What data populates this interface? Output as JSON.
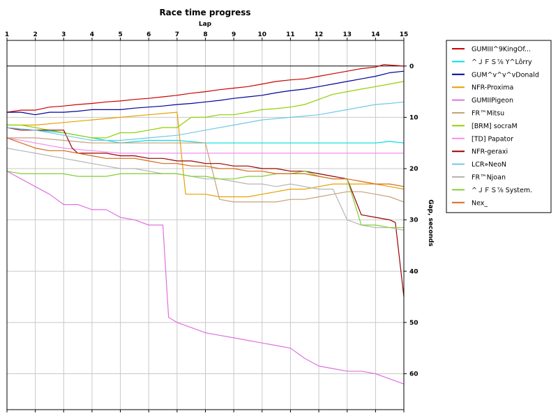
{
  "chart_data": {
    "type": "line",
    "title": "Race time progress",
    "xlabel": "Lap",
    "ylabel": "Gap, seconds",
    "x_ticks": [
      1,
      2,
      3,
      4,
      5,
      6,
      7,
      8,
      9,
      10,
      11,
      12,
      13,
      14,
      15
    ],
    "y_ticks": [
      0,
      10,
      20,
      30,
      40,
      50,
      60
    ],
    "xlim": [
      1,
      15
    ],
    "ylim": [
      -5,
      67
    ],
    "y_inverted": true,
    "grid": true,
    "legend_position": "right",
    "series": [
      {
        "name": "GUMIII^9KingOf...",
        "color": "#cc0000",
        "x": [
          1,
          1.5,
          2,
          2.5,
          3,
          3.5,
          4,
          4.5,
          5,
          5.5,
          6,
          6.5,
          7,
          7.5,
          8,
          8.5,
          9,
          9.5,
          10,
          10.5,
          11,
          11.5,
          12,
          12.5,
          13,
          13.5,
          14,
          14.3,
          14.5,
          15
        ],
        "y": [
          9,
          8.6,
          8.6,
          8,
          7.8,
          7.5,
          7.3,
          7,
          6.8,
          6.5,
          6.3,
          6,
          5.7,
          5.3,
          5,
          4.6,
          4.3,
          4,
          3.5,
          3,
          2.7,
          2.5,
          2,
          1.5,
          1,
          0.5,
          0.2,
          -0.3,
          -0.2,
          0
        ]
      },
      {
        "name": "^ＪＦＳ⅞ Y^Lôrry",
        "color": "#00e0e0",
        "x": [
          1,
          2,
          3,
          4,
          5,
          6,
          7,
          8,
          9,
          10,
          11,
          12,
          13,
          14,
          14.5,
          15
        ],
        "y": [
          12,
          12.5,
          13,
          14,
          15,
          14.5,
          14.5,
          15,
          15,
          15,
          15,
          15,
          15,
          15,
          14.7,
          15
        ]
      },
      {
        "name": "GUM^v^v^vDonald",
        "color": "#000099",
        "x": [
          1,
          1.5,
          2,
          2.5,
          3,
          3.5,
          4,
          4.5,
          5,
          5.5,
          6,
          6.5,
          7,
          7.5,
          8,
          8.5,
          9,
          9.5,
          10,
          10.5,
          11,
          11.5,
          12,
          12.5,
          13,
          13.5,
          14,
          14.5,
          15
        ],
        "y": [
          9,
          9,
          9.5,
          9,
          9,
          8.8,
          8.5,
          8.5,
          8.5,
          8.2,
          8,
          7.8,
          7.5,
          7.3,
          7,
          6.7,
          6.3,
          6,
          5.7,
          5.2,
          4.8,
          4.5,
          4,
          3.5,
          3,
          2.5,
          2,
          1.3,
          1
        ]
      },
      {
        "name": "NFR-Proxima",
        "color": "#e6a000",
        "x": [
          1,
          2,
          3,
          4,
          5,
          6,
          7,
          7.3,
          8,
          8.5,
          9,
          9.5,
          10,
          10.5,
          11,
          11.5,
          12,
          12.5,
          13,
          13.5,
          14,
          14.5,
          15
        ],
        "y": [
          11.5,
          11.5,
          11,
          10.5,
          10,
          9.5,
          9,
          25,
          25,
          25.5,
          25.5,
          25.5,
          25,
          24.5,
          24,
          24,
          23.5,
          23,
          23,
          23,
          23,
          23.5,
          24
        ]
      },
      {
        "name": "GUMIIPigeon",
        "color": "#e070e0",
        "x": [
          1,
          1.5,
          2,
          2.5,
          3,
          3.5,
          4,
          4.5,
          5,
          5.5,
          6,
          6.5,
          6.7,
          7,
          7.5,
          8,
          8.5,
          9,
          9.5,
          10,
          10.5,
          11,
          11.5,
          12,
          12.5,
          13,
          13.5,
          14,
          14.5,
          15
        ],
        "y": [
          20.5,
          22,
          23.5,
          25,
          27,
          27,
          28,
          28,
          29.5,
          30,
          31,
          31,
          49,
          50,
          51,
          52,
          52.5,
          53,
          53.5,
          54,
          54.5,
          55,
          57,
          58.5,
          59,
          59.5,
          59.5,
          60,
          61,
          62
        ]
      },
      {
        "name": "FR™Mitsu",
        "color": "#c8a078",
        "x": [
          1,
          2,
          3,
          4,
          5,
          6,
          7,
          8,
          8.5,
          9,
          9.5,
          10,
          10.5,
          11,
          11.5,
          12,
          12.5,
          13,
          13.5,
          14,
          14.5,
          15
        ],
        "y": [
          14,
          14,
          14.5,
          15,
          15,
          15,
          15,
          15,
          26,
          26.5,
          26.5,
          26.5,
          26.5,
          26,
          26,
          25.5,
          25,
          24.5,
          24.5,
          25,
          25.5,
          26.5
        ]
      },
      {
        "name": "[BRM] socraM",
        "color": "#90d000",
        "x": [
          1,
          1.5,
          2,
          2.5,
          3,
          3.5,
          4,
          4.5,
          5,
          5.5,
          6,
          6.5,
          7,
          7.5,
          8,
          8.5,
          9,
          9.5,
          10,
          10.5,
          11,
          11.5,
          12,
          12.5,
          13,
          13.5,
          14,
          14.5,
          15
        ],
        "y": [
          11.5,
          11.5,
          12,
          12.5,
          13,
          13.5,
          14,
          14,
          13,
          13,
          12.5,
          12,
          12,
          10,
          10,
          9.5,
          9.5,
          9,
          8.5,
          8.3,
          8,
          7.5,
          6.5,
          5.5,
          5,
          4.5,
          4,
          3.5,
          3
        ]
      },
      {
        "name": "[TD] Papator",
        "color": "#f090f0",
        "x": [
          1,
          2,
          3,
          4,
          5,
          6,
          7,
          8,
          9,
          10,
          11,
          12,
          13,
          14,
          15
        ],
        "y": [
          14,
          15,
          16,
          16.5,
          17,
          17,
          17,
          17,
          17,
          17,
          17,
          17,
          17,
          17,
          17
        ]
      },
      {
        "name": "NFR-geraxi",
        "color": "#990000",
        "x": [
          1,
          1.5,
          2,
          2.5,
          3,
          3.3,
          3.5,
          4,
          4.5,
          5,
          5.5,
          6,
          6.5,
          7,
          7.5,
          8,
          8.5,
          9,
          9.5,
          10,
          10.5,
          11,
          11.5,
          12,
          12.5,
          13,
          13.5,
          14,
          14.5,
          14.7,
          15
        ],
        "y": [
          12,
          12.5,
          12.5,
          12.5,
          12.5,
          16,
          17,
          17,
          17,
          17.5,
          17.5,
          18,
          18,
          18.5,
          18.5,
          19,
          19,
          19.5,
          19.5,
          20,
          20,
          20.5,
          20.5,
          21,
          21.5,
          22,
          29,
          29.5,
          30,
          30.5,
          45
        ]
      },
      {
        "name": "LCR»NeoN",
        "color": "#70c8e8",
        "x": [
          1,
          2,
          3,
          4,
          5,
          6,
          7,
          8,
          9,
          10,
          11,
          12,
          13,
          14,
          14.5,
          15
        ],
        "y": [
          12,
          12.5,
          13.5,
          14.5,
          14.5,
          14,
          13.5,
          12.5,
          11.5,
          10.5,
          10,
          9.5,
          8.5,
          7.5,
          7.3,
          7
        ]
      },
      {
        "name": "FR™Njoan",
        "color": "#b4b4b4",
        "x": [
          1,
          1.5,
          2,
          2.5,
          3,
          3.5,
          4,
          4.5,
          5,
          5.5,
          6,
          6.5,
          7,
          7.5,
          8,
          8.5,
          9,
          9.5,
          10,
          10.5,
          11,
          11.5,
          12,
          12.5,
          13,
          13.5,
          14,
          14.5,
          15
        ],
        "y": [
          16,
          16.5,
          17,
          17.5,
          18,
          18.5,
          19,
          19.5,
          20,
          20,
          20.5,
          21,
          21,
          21.5,
          22,
          22,
          22.5,
          23,
          23,
          23.5,
          23,
          23.5,
          24,
          24,
          30,
          31,
          31.5,
          31.5,
          32
        ]
      },
      {
        "name": "^ＪＦＳ⅞ System.",
        "color": "#80d030",
        "x": [
          1,
          1.5,
          2,
          2.5,
          3,
          3.5,
          4,
          4.5,
          5,
          5.5,
          6,
          6.5,
          7,
          7.5,
          8,
          8.5,
          9,
          9.5,
          10,
          10.5,
          11,
          11.5,
          12,
          12.5,
          13,
          13.5,
          14,
          14.5,
          15
        ],
        "y": [
          20.5,
          21,
          21,
          21,
          21,
          21.5,
          21.5,
          21.5,
          21,
          21,
          21,
          21,
          21,
          21.5,
          21.5,
          22,
          22,
          21.5,
          21.5,
          21,
          21,
          20.5,
          21.5,
          22,
          22,
          31,
          31,
          31.5,
          31.5
        ]
      },
      {
        "name": "Nex_",
        "color": "#d86818",
        "x": [
          1,
          1.5,
          2,
          2.5,
          3,
          3.5,
          4,
          4.5,
          5,
          5.5,
          6,
          6.5,
          7,
          7.5,
          8,
          8.5,
          9,
          9.5,
          10,
          10.5,
          11,
          11.5,
          12,
          12.5,
          13,
          13.5,
          14,
          14.5,
          15
        ],
        "y": [
          14,
          15,
          16,
          16.5,
          16.5,
          17,
          17.5,
          18,
          18,
          18,
          18.5,
          19,
          19,
          19.5,
          19.5,
          20,
          20,
          20.5,
          20.5,
          21,
          21,
          21,
          21.5,
          22,
          22,
          22.5,
          23,
          23,
          23.5
        ]
      }
    ]
  }
}
